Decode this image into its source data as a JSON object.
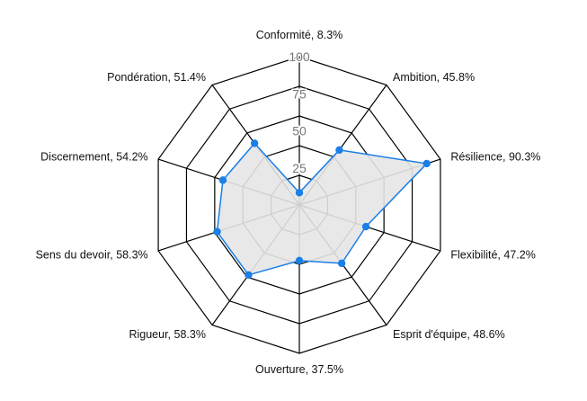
{
  "chart_data": {
    "type": "radar",
    "scale": {
      "min": 0,
      "max": 100,
      "ticks": [
        25,
        50,
        75,
        100
      ]
    },
    "series": [
      {
        "values": [
          8.3,
          45.8,
          90.3,
          47.2,
          48.6,
          37.5,
          58.3,
          58.3,
          54.2,
          51.4
        ],
        "line_color": "#1a7fe6",
        "fill_color": "#e6e6e6"
      }
    ],
    "categories": [
      {
        "name": "Conformité",
        "value": 8.3,
        "label": "Conformité, 8.3%"
      },
      {
        "name": "Ambition",
        "value": 45.8,
        "label": "Ambition, 45.8%"
      },
      {
        "name": "Résilience",
        "value": 90.3,
        "label": "Résilience, 90.3%"
      },
      {
        "name": "Flexibilité",
        "value": 47.2,
        "label": "Flexibilité, 47.2%"
      },
      {
        "name": "Esprit d'équipe",
        "value": 48.6,
        "label": "Esprit d'équipe, 48.6%"
      },
      {
        "name": "Ouverture",
        "value": 37.5,
        "label": "Ouverture, 37.5%"
      },
      {
        "name": "Rigueur",
        "value": 58.3,
        "label": "Rigueur, 58.3%"
      },
      {
        "name": "Sens du devoir",
        "value": 58.3,
        "label": "Sens du devoir, 58.3%"
      },
      {
        "name": "Discernement",
        "value": 54.2,
        "label": "Discernement, 54.2%"
      },
      {
        "name": "Pondération",
        "value": 51.4,
        "label": "Pondération, 51.4%"
      }
    ],
    "grid": true,
    "grid_shape": "decagon",
    "grid_color": "#000000"
  }
}
